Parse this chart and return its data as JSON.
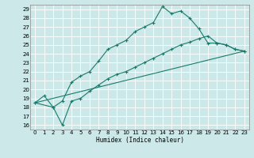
{
  "xlabel": "Humidex (Indice chaleur)",
  "bg_color": "#cce8e8",
  "grid_color": "#ffffff",
  "line_color": "#1a7a6a",
  "xlim": [
    -0.5,
    23.5
  ],
  "ylim": [
    15.5,
    29.5
  ],
  "xticks": [
    0,
    1,
    2,
    3,
    4,
    5,
    6,
    7,
    8,
    9,
    10,
    11,
    12,
    13,
    14,
    15,
    16,
    17,
    18,
    19,
    20,
    21,
    22,
    23
  ],
  "yticks": [
    16,
    17,
    18,
    19,
    20,
    21,
    22,
    23,
    24,
    25,
    26,
    27,
    28,
    29
  ],
  "line1_x": [
    0,
    1,
    2,
    3,
    4,
    5,
    6,
    7,
    8,
    9,
    10,
    11,
    12,
    13,
    14,
    15,
    16,
    17,
    18,
    19,
    20,
    21,
    22,
    23
  ],
  "line1_y": [
    18.5,
    19.3,
    18.0,
    18.7,
    20.8,
    21.5,
    22.0,
    23.2,
    24.5,
    25.0,
    25.5,
    26.5,
    27.0,
    27.5,
    29.3,
    28.5,
    28.8,
    28.0,
    26.8,
    25.2,
    25.2,
    25.0,
    24.5,
    24.3
  ],
  "line2_x": [
    0,
    2,
    3,
    4,
    5,
    6,
    7,
    8,
    9,
    10,
    11,
    12,
    13,
    14,
    15,
    16,
    17,
    18,
    19,
    20,
    21,
    22,
    23
  ],
  "line2_y": [
    18.5,
    18.0,
    16.0,
    18.7,
    19.0,
    19.8,
    20.5,
    21.2,
    21.7,
    22.0,
    22.5,
    23.0,
    23.5,
    24.0,
    24.5,
    25.0,
    25.3,
    25.7,
    26.0,
    25.2,
    25.0,
    24.5,
    24.3
  ],
  "line3_x": [
    0,
    23
  ],
  "line3_y": [
    18.5,
    24.3
  ]
}
